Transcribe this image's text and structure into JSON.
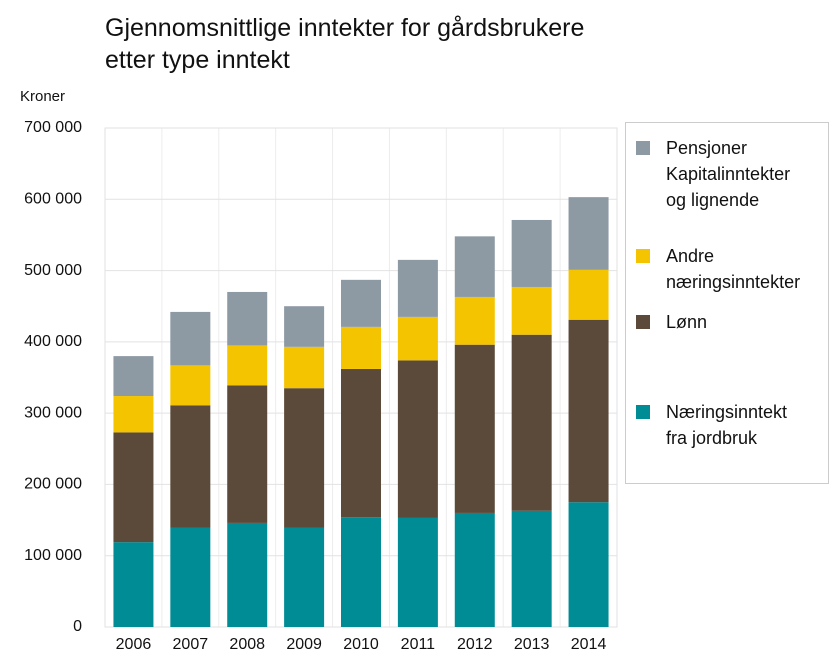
{
  "chart_data": {
    "type": "stacked_bar",
    "title": "Gjennomsnittlige inntekter for gårdsbrukere\netter type inntekt",
    "ylabel": "Kroner",
    "categories": [
      "2006",
      "2007",
      "2008",
      "2009",
      "2010",
      "2011",
      "2012",
      "2013",
      "2014"
    ],
    "series": [
      {
        "name": "Næringsinntekt\nfra jordbruk",
        "color": "#008c95",
        "values": [
          119000,
          139000,
          146000,
          139000,
          154000,
          153000,
          160000,
          163000,
          175000
        ]
      },
      {
        "name": "Lønn",
        "color": "#5b4a39",
        "values": [
          154000,
          172000,
          193000,
          196000,
          208000,
          221000,
          236000,
          247000,
          256000
        ]
      },
      {
        "name": "Andre\nnæringsinntekter",
        "color": "#f5c400",
        "values": [
          51000,
          56000,
          56000,
          58000,
          59000,
          61000,
          67000,
          67000,
          70000
        ]
      },
      {
        "name": "Pensjoner\nKapitalinntekter\nog lignende",
        "color": "#8d99a3",
        "values": [
          56000,
          75000,
          75000,
          57000,
          66000,
          80000,
          85000,
          94000,
          102000
        ]
      }
    ],
    "ylim": [
      0,
      700000
    ],
    "yticks": [
      0,
      {
        "value": 100000,
        "label": "100 000"
      },
      {
        "value": 200000,
        "label": "200 000"
      },
      {
        "value": 300000,
        "label": "300 000"
      },
      {
        "value": 400000,
        "label": "400 000"
      },
      {
        "value": 500000,
        "label": "500 000"
      },
      {
        "value": 600000,
        "label": "600 000"
      },
      {
        "value": 700000,
        "label": "700 000"
      }
    ],
    "grid": true
  }
}
